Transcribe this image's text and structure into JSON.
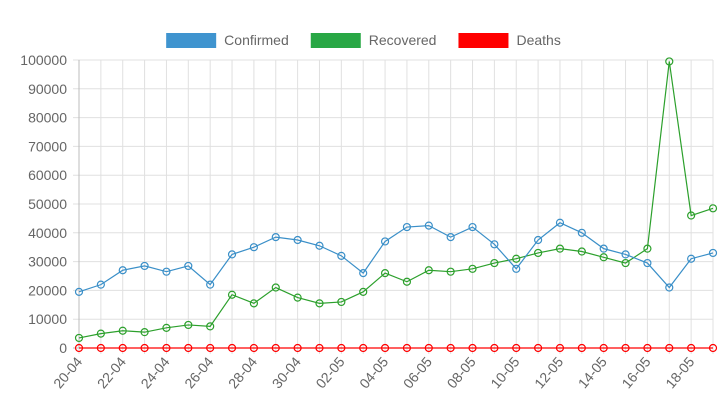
{
  "chart_data": {
    "type": "line",
    "x": [
      "20-04",
      "21-04",
      "22-04",
      "23-04",
      "24-04",
      "25-04",
      "26-04",
      "27-04",
      "28-04",
      "29-04",
      "30-04",
      "01-05",
      "02-05",
      "03-05",
      "04-05",
      "05-05",
      "06-05",
      "07-05",
      "08-05",
      "09-05",
      "10-05",
      "11-05",
      "12-05",
      "13-05",
      "14-05",
      "15-05",
      "16-05",
      "17-05",
      "18-05",
      "19-05"
    ],
    "x_tick_labels": [
      "20-04",
      "22-04",
      "24-04",
      "26-04",
      "28-04",
      "30-04",
      "02-05",
      "04-05",
      "06-05",
      "08-05",
      "10-05",
      "12-05",
      "14-05",
      "16-05",
      "18-05"
    ],
    "series": [
      {
        "name": "Confirmed",
        "color": "#3a8fc8",
        "legend_color": "#3f94cf",
        "values": [
          19500,
          22000,
          27000,
          28500,
          26500,
          28500,
          22000,
          32500,
          35000,
          38500,
          37500,
          35500,
          32000,
          26000,
          37000,
          42000,
          42500,
          38500,
          42000,
          36000,
          27500,
          37500,
          43500,
          40000,
          34500,
          32500,
          29500,
          21000,
          31000,
          33000
        ]
      },
      {
        "name": "Recovered",
        "color": "#2ca02c",
        "legend_color": "#28a745",
        "values": [
          3500,
          5000,
          6000,
          5500,
          7000,
          8000,
          7500,
          18500,
          15500,
          21000,
          17500,
          15500,
          16000,
          19500,
          26000,
          23000,
          27000,
          26500,
          27500,
          29500,
          31000,
          33000,
          34500,
          33500,
          31500,
          29500,
          34500,
          99500,
          46000,
          48500
        ]
      },
      {
        "name": "Deaths",
        "color": "#ff0000",
        "legend_color": "#ff0000",
        "values": [
          0,
          0,
          0,
          0,
          0,
          0,
          0,
          0,
          0,
          0,
          0,
          0,
          0,
          0,
          0,
          0,
          0,
          0,
          0,
          0,
          0,
          0,
          0,
          0,
          0,
          0,
          0,
          0,
          0,
          0
        ]
      }
    ],
    "y_ticks": [
      "0",
      "10000",
      "20000",
      "30000",
      "40000",
      "50000",
      "60000",
      "70000",
      "80000",
      "90000",
      "100000"
    ],
    "ylim": [
      0,
      100000
    ],
    "grid": true,
    "legend_position": "top"
  }
}
